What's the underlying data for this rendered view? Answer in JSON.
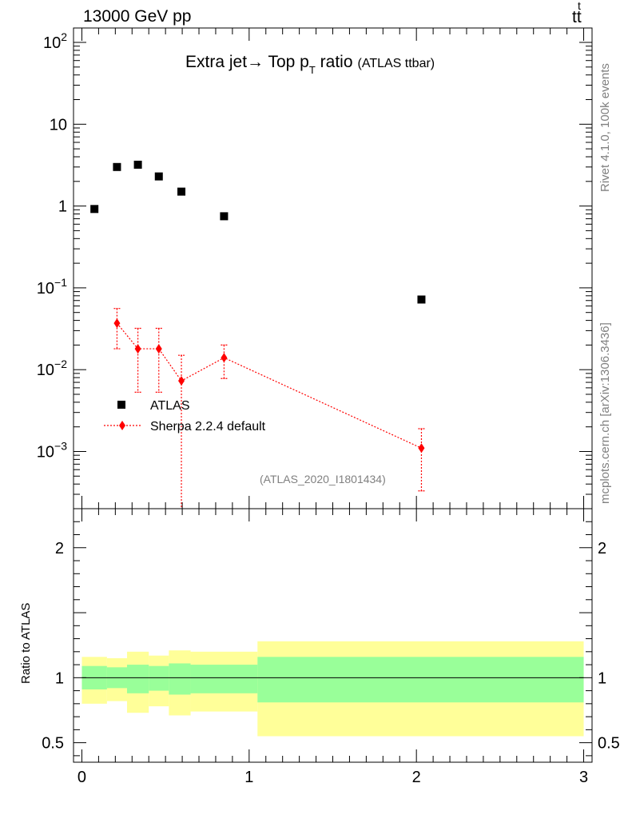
{
  "header": {
    "left": "13000 GeV pp",
    "right_main": "tt",
    "right_bar": "t"
  },
  "side_labels": {
    "rivet": "Rivet 4.1.0,  100k events",
    "mcplots": "mcplots.cern.ch [arXiv:1306.3436]"
  },
  "chart_data": [
    {
      "type": "scatter",
      "panel": "main",
      "title": "Extra jet→ Top p",
      "title_subscript": "T",
      "title_tail": " ratio",
      "title_small": "(ATLAS ttbar)",
      "watermark": "(ATLAS_2020_I1801434)",
      "yscale": "log",
      "xlim": [
        -0.05,
        3.05
      ],
      "ylim": [
        0.0002,
        150
      ],
      "y_ticks": [
        {
          "value": 100,
          "base": "10",
          "exp": "2"
        },
        {
          "value": 10,
          "base": "10",
          "exp": ""
        },
        {
          "value": 1,
          "base": "1",
          "exp": ""
        },
        {
          "value": 0.1,
          "base": "10",
          "exp": "−1"
        },
        {
          "value": 0.01,
          "base": "10",
          "exp": "−2"
        },
        {
          "value": 0.001,
          "base": "10",
          "exp": "−3"
        }
      ],
      "legend_position": "lower-left",
      "series": [
        {
          "name": "ATLAS",
          "color": "#000000",
          "marker": "square",
          "x": [
            0.075,
            0.21,
            0.335,
            0.46,
            0.595,
            0.85,
            2.03
          ],
          "y": [
            0.92,
            3.0,
            3.2,
            2.3,
            1.5,
            0.75,
            0.072
          ]
        },
        {
          "name": "Sherpa 2.2.4 default",
          "color": "#ff0000",
          "marker": "diamond",
          "x": [
            0.21,
            0.335,
            0.46,
            0.595,
            0.85,
            2.03
          ],
          "y": [
            0.037,
            0.018,
            0.018,
            0.0073,
            0.014,
            0.0011
          ],
          "y_err_low": [
            0.018,
            0.0053,
            0.0053,
            0.0001,
            0.0078,
            0.00033
          ],
          "y_err_high": [
            0.056,
            0.032,
            0.032,
            0.015,
            0.02,
            0.0019
          ]
        }
      ]
    },
    {
      "type": "area",
      "panel": "ratio",
      "ylabel": "Ratio to ATLAS",
      "xlim": [
        -0.05,
        3.05
      ],
      "ylim": [
        0.35,
        2.3
      ],
      "y_ticks": [
        "0.5",
        "1",
        "2"
      ],
      "y_tick_values": [
        0.5,
        1,
        2
      ],
      "x_ticks": [
        "0",
        "1",
        "2",
        "3"
      ],
      "x_tick_values": [
        0,
        1,
        2,
        3
      ],
      "reference_line": 1,
      "bins": [
        0,
        0.15,
        0.27,
        0.4,
        0.52,
        0.65,
        1.05,
        3.0
      ],
      "band_green": {
        "color": "#99ff99",
        "low": [
          0.91,
          0.92,
          0.88,
          0.9,
          0.87,
          0.88,
          0.81
        ],
        "high": [
          1.09,
          1.08,
          1.1,
          1.09,
          1.11,
          1.1,
          1.16
        ]
      },
      "band_yellow": {
        "color": "#ffff99",
        "low": [
          0.8,
          0.82,
          0.73,
          0.78,
          0.71,
          0.74,
          0.55
        ],
        "high": [
          1.16,
          1.15,
          1.2,
          1.17,
          1.21,
          1.2,
          1.28
        ]
      }
    }
  ]
}
